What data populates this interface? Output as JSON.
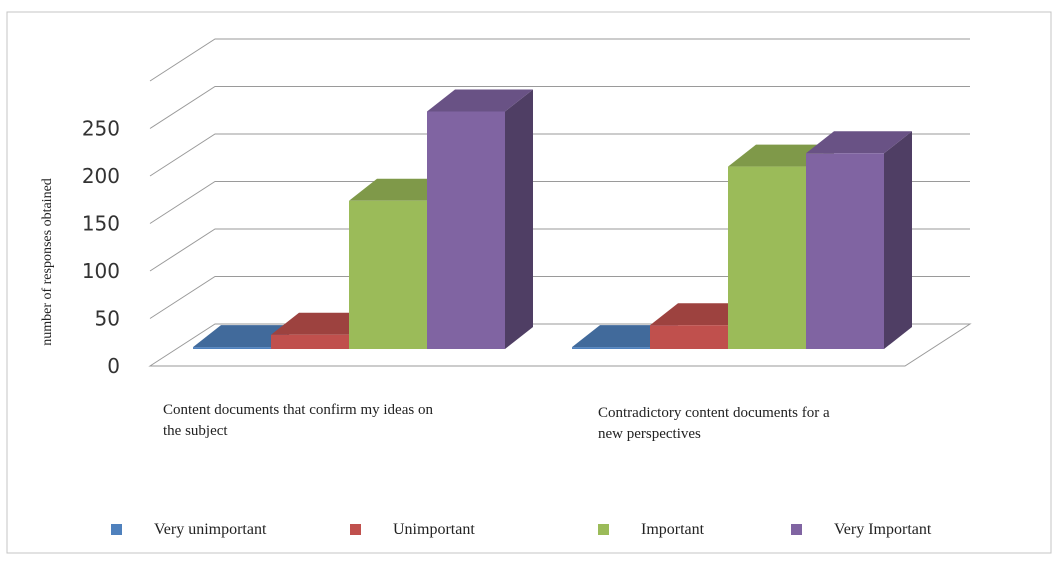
{
  "chart_data": {
    "type": "bar",
    "title": "",
    "xlabel": "",
    "ylabel": "number of responses obtained",
    "ylim": [
      0,
      250
    ],
    "yticks": [
      0,
      50,
      100,
      150,
      200,
      250
    ],
    "grid": true,
    "legend_position": "bottom",
    "categories": [
      [
        "Content documents that confirm my ideas on",
        "the subject"
      ],
      [
        "Contradictory content documents for a",
        "new perspectives"
      ]
    ],
    "series": [
      {
        "name": "Very unimportant",
        "values": [
          2,
          2
        ],
        "color": "#4f81bd"
      },
      {
        "name": "Unimportant",
        "values": [
          15,
          25
        ],
        "color": "#c0504d"
      },
      {
        "name": "Important",
        "values": [
          156,
          192
        ],
        "color": "#9bbb59"
      },
      {
        "name": "Very Important",
        "values": [
          250,
          206
        ],
        "color": "#8064a2"
      }
    ]
  }
}
